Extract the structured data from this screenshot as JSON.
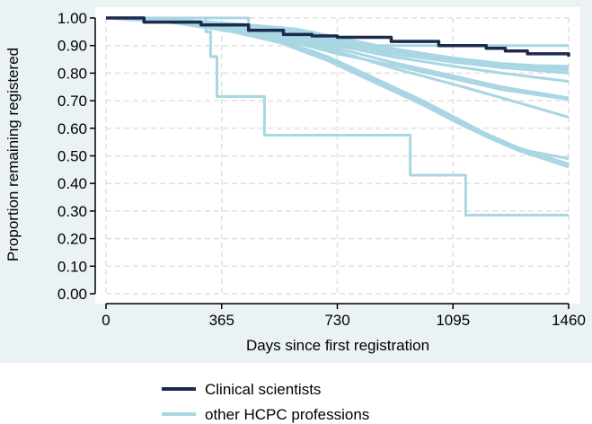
{
  "colors": {
    "background": "#eaf2f3",
    "plot_background": "#ffffff",
    "grid": "#e0e0e0",
    "clinical": "#1c2a4e",
    "other": "#a9d6e3"
  },
  "chart_data": {
    "type": "line",
    "title": "",
    "xlabel": "Days since first registration",
    "ylabel": "Proportion remaining registered",
    "xlim": [
      0,
      1460
    ],
    "ylim": [
      0,
      1
    ],
    "xticks": [
      0,
      365,
      730,
      1095,
      1460
    ],
    "xtick_labels": [
      "0",
      "365",
      "730",
      "1095",
      "1460"
    ],
    "yticks": [
      0,
      0.1,
      0.2,
      0.3,
      0.4,
      0.5,
      0.6,
      0.7,
      0.8,
      0.9,
      1.0
    ],
    "ytick_labels": [
      "0.00",
      "0.10",
      "0.20",
      "0.30",
      "0.40",
      "0.50",
      "0.60",
      "0.70",
      "0.80",
      "0.90",
      "1.00"
    ],
    "grid": true,
    "legend_position": "bottom",
    "legend": [
      {
        "label": "Clinical scientists",
        "color": "#1c2a4e"
      },
      {
        "label": "other HCPC professions",
        "color": "#a9d6e3"
      }
    ],
    "series": [
      {
        "group": "other",
        "step": true,
        "x": [
          0,
          315,
          330,
          350,
          500,
          960,
          1135,
          1460
        ],
        "y": [
          1.0,
          0.95,
          0.86,
          0.715,
          0.575,
          0.43,
          0.285,
          0.285
        ]
      },
      {
        "group": "other",
        "x": [
          0,
          200,
          400,
          550,
          700,
          850,
          1000,
          1100,
          1200,
          1300,
          1460
        ],
        "y": [
          1.0,
          0.99,
          0.96,
          0.92,
          0.86,
          0.78,
          0.7,
          0.64,
          0.58,
          0.53,
          0.47
        ]
      },
      {
        "group": "other",
        "x": [
          0,
          200,
          400,
          550,
          700,
          850,
          1000,
          1100,
          1200,
          1300,
          1460
        ],
        "y": [
          1.0,
          0.99,
          0.955,
          0.915,
          0.85,
          0.77,
          0.69,
          0.63,
          0.575,
          0.525,
          0.49
        ]
      },
      {
        "group": "other",
        "x": [
          0,
          200,
          400,
          550,
          700,
          850,
          1000,
          1100,
          1200,
          1300,
          1460
        ],
        "y": [
          1.0,
          0.985,
          0.95,
          0.91,
          0.845,
          0.765,
          0.685,
          0.625,
          0.57,
          0.52,
          0.46
        ]
      },
      {
        "group": "other",
        "x": [
          0,
          200,
          400,
          550,
          730,
          900,
          1095,
          1250,
          1460
        ],
        "y": [
          1.0,
          0.99,
          0.96,
          0.93,
          0.88,
          0.82,
          0.76,
          0.71,
          0.64
        ]
      },
      {
        "group": "other",
        "x": [
          0,
          200,
          400,
          550,
          730,
          900,
          1095,
          1250,
          1460
        ],
        "y": [
          1.0,
          0.99,
          0.965,
          0.935,
          0.89,
          0.84,
          0.79,
          0.75,
          0.71
        ]
      },
      {
        "group": "other",
        "x": [
          0,
          200,
          400,
          550,
          730,
          900,
          1095,
          1250,
          1460
        ],
        "y": [
          1.0,
          0.985,
          0.955,
          0.925,
          0.87,
          0.83,
          0.78,
          0.74,
          0.705
        ]
      },
      {
        "group": "other",
        "x": [
          0,
          200,
          400,
          550,
          730,
          900,
          1095,
          1250,
          1460
        ],
        "y": [
          1.0,
          0.99,
          0.97,
          0.945,
          0.9,
          0.86,
          0.825,
          0.8,
          0.77
        ]
      },
      {
        "group": "other",
        "x": [
          0,
          200,
          400,
          550,
          730,
          900,
          1095,
          1250,
          1460
        ],
        "y": [
          1.0,
          0.995,
          0.975,
          0.955,
          0.92,
          0.88,
          0.85,
          0.83,
          0.81
        ]
      },
      {
        "group": "other",
        "x": [
          0,
          200,
          400,
          550,
          730,
          900,
          1095,
          1250,
          1460
        ],
        "y": [
          1.0,
          0.99,
          0.97,
          0.95,
          0.91,
          0.87,
          0.84,
          0.82,
          0.8
        ]
      },
      {
        "group": "other",
        "x": [
          0,
          200,
          400,
          600,
          730,
          900,
          1095,
          1250,
          1460
        ],
        "y": [
          1.0,
          0.995,
          0.98,
          0.96,
          0.93,
          0.89,
          0.855,
          0.835,
          0.82
        ]
      },
      {
        "group": "other",
        "x": [
          0,
          200,
          400,
          600,
          730,
          900,
          1095,
          1250,
          1460
        ],
        "y": [
          1.0,
          0.995,
          0.975,
          0.955,
          0.915,
          0.88,
          0.85,
          0.83,
          0.825
        ]
      },
      {
        "group": "other",
        "step": true,
        "x": [
          0,
          450,
          650,
          1460
        ],
        "y": [
          1.0,
          0.95,
          0.9,
          0.9
        ]
      },
      {
        "group": "clinical",
        "step": true,
        "x": [
          0,
          120,
          300,
          450,
          560,
          650,
          730,
          900,
          1050,
          1200,
          1260,
          1330,
          1460
        ],
        "y": [
          1.0,
          0.985,
          0.975,
          0.955,
          0.94,
          0.935,
          0.93,
          0.915,
          0.9,
          0.89,
          0.88,
          0.87,
          0.86
        ]
      }
    ]
  }
}
